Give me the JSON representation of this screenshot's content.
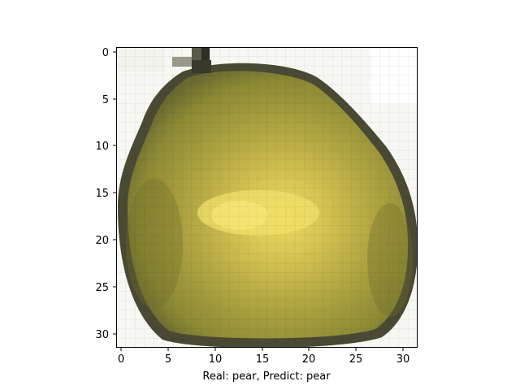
{
  "figure": {
    "xlabel": "Real: pear, Predict: pear",
    "x_ticks": [
      "0",
      "5",
      "10",
      "15",
      "20",
      "25",
      "30"
    ],
    "y_ticks": [
      "0",
      "5",
      "10",
      "15",
      "20",
      "25",
      "30"
    ],
    "image_grid_size": 32,
    "axis_range": [
      -0.5,
      31.5
    ],
    "subject": "pear",
    "colors": {
      "background": "#ffffff",
      "pear_body": "#a39a3c",
      "pear_highlight": "#e8d45a",
      "pear_edge": "#5a5a38",
      "stem": "#3e3a2c"
    }
  }
}
